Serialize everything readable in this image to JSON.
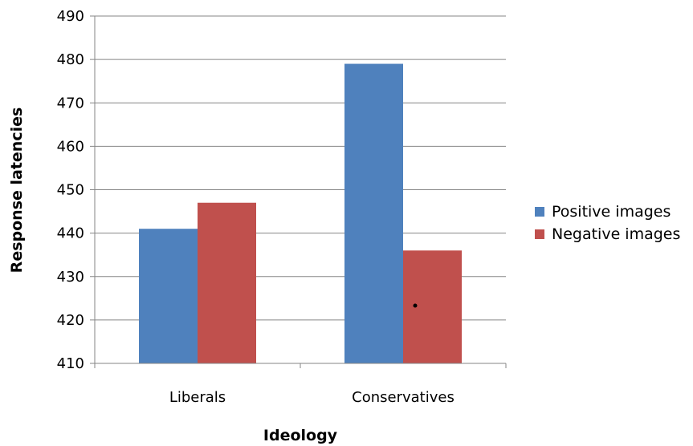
{
  "chart_data": {
    "type": "bar",
    "title": "",
    "xlabel": "Ideology",
    "ylabel": "Response latencies",
    "categories": [
      "Liberals",
      "Conservatives"
    ],
    "series": [
      {
        "name": "Positive images",
        "values": [
          441,
          479
        ],
        "color": "#4F81BD"
      },
      {
        "name": "Negative images",
        "values": [
          447,
          436
        ],
        "color": "#C0504D"
      }
    ],
    "ylim": [
      410,
      490
    ],
    "ytick_step": 10,
    "yticks": [
      "410",
      "420",
      "430",
      "440",
      "450",
      "460",
      "470",
      "480",
      "490"
    ],
    "grid": true,
    "legend_position": "right"
  }
}
